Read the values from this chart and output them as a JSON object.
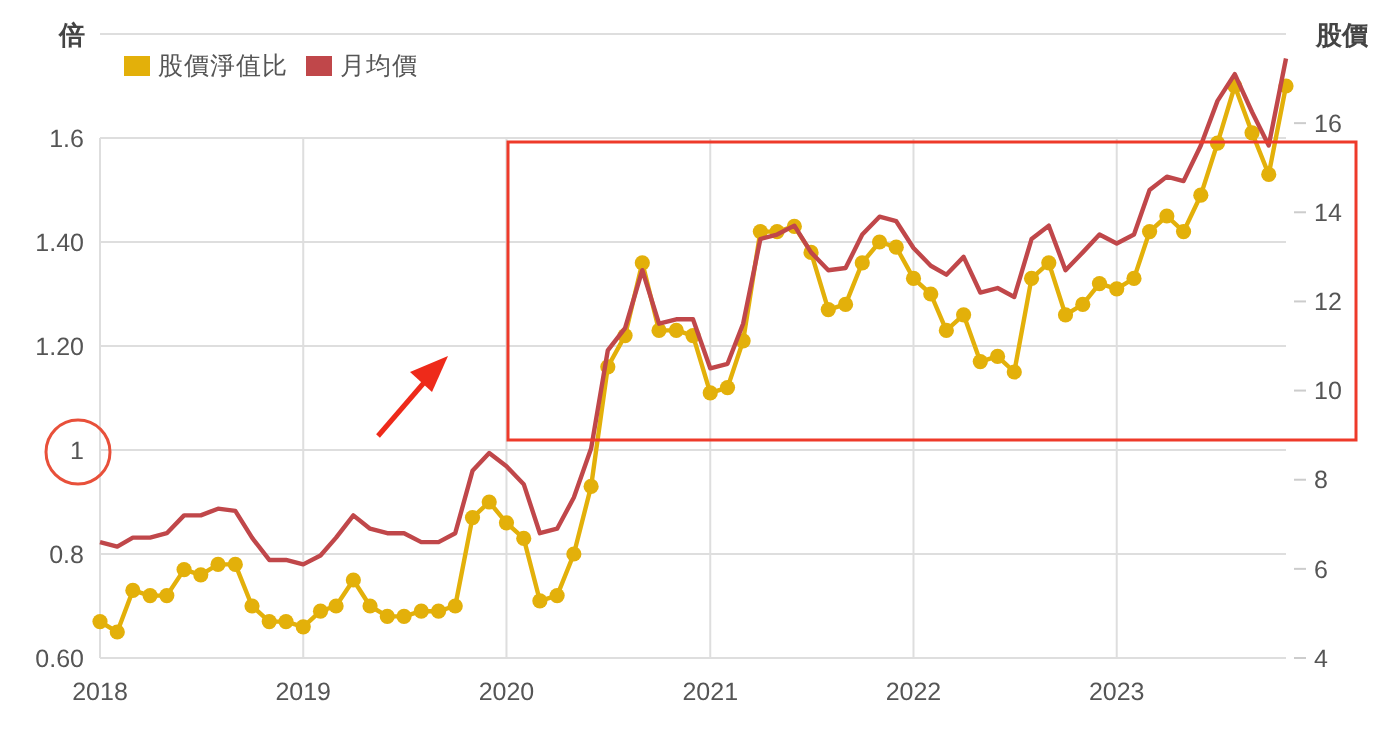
{
  "chart_data": {
    "type": "line",
    "ylabel": "倍",
    "y2label": "股價",
    "x": [
      "2018-01",
      "2018-02",
      "2018-03",
      "2018-04",
      "2018-05",
      "2018-06",
      "2018-07",
      "2018-08",
      "2018-09",
      "2018-10",
      "2018-11",
      "2018-12",
      "2019-01",
      "2019-02",
      "2019-03",
      "2019-04",
      "2019-05",
      "2019-06",
      "2019-07",
      "2019-08",
      "2019-09",
      "2019-10",
      "2019-11",
      "2019-12",
      "2020-01",
      "2020-02",
      "2020-03",
      "2020-04",
      "2020-05",
      "2020-06",
      "2020-07",
      "2020-08",
      "2020-09",
      "2020-10",
      "2020-11",
      "2020-12",
      "2021-01",
      "2021-02",
      "2021-03",
      "2021-04",
      "2021-05",
      "2021-06",
      "2021-07",
      "2021-08",
      "2021-09",
      "2021-10",
      "2021-11",
      "2021-12",
      "2022-01",
      "2022-02",
      "2022-03",
      "2022-04",
      "2022-05",
      "2022-06",
      "2022-07",
      "2022-08",
      "2022-09",
      "2022-10",
      "2022-11",
      "2022-12",
      "2023-01",
      "2023-02",
      "2023-03",
      "2023-04",
      "2023-05",
      "2023-06",
      "2023-07",
      "2023-08",
      "2023-09",
      "2023-10",
      "2023-11"
    ],
    "series": [
      {
        "name": "股價淨值比",
        "color": "#e3b00a",
        "marker": "circle",
        "values": [
          0.67,
          0.65,
          0.73,
          0.72,
          0.72,
          0.77,
          0.76,
          0.78,
          0.78,
          0.7,
          0.67,
          0.67,
          0.66,
          0.69,
          0.7,
          0.75,
          0.7,
          0.68,
          0.68,
          0.69,
          0.69,
          0.7,
          0.87,
          0.9,
          0.86,
          0.83,
          0.71,
          0.72,
          0.8,
          0.93,
          1.16,
          1.22,
          1.36,
          1.23,
          1.23,
          1.22,
          1.11,
          1.12,
          1.21,
          1.42,
          1.42,
          1.43,
          1.38,
          1.27,
          1.28,
          1.36,
          1.4,
          1.39,
          1.33,
          1.3,
          1.23,
          1.26,
          1.17,
          1.18,
          1.15,
          1.33,
          1.36,
          1.26,
          1.28,
          1.32,
          1.31,
          1.33,
          1.42,
          1.45,
          1.42,
          1.49,
          1.59,
          1.7,
          1.61,
          1.53,
          1.7
        ]
      },
      {
        "name": "月均價",
        "color": "#c0474a",
        "marker": "none",
        "axis": "y2",
        "values": [
          6.6,
          6.5,
          6.7,
          6.7,
          6.8,
          7.2,
          7.2,
          7.35,
          7.3,
          6.7,
          6.2,
          6.2,
          6.1,
          6.3,
          6.7,
          7.2,
          6.9,
          6.8,
          6.8,
          6.6,
          6.6,
          6.8,
          8.2,
          8.6,
          8.3,
          7.9,
          6.8,
          6.9,
          7.6,
          8.7,
          10.9,
          11.4,
          12.7,
          11.5,
          11.6,
          11.6,
          10.5,
          10.6,
          11.5,
          13.4,
          13.5,
          13.7,
          13.1,
          12.7,
          12.75,
          13.5,
          13.9,
          13.8,
          13.2,
          12.8,
          12.6,
          13.0,
          12.2,
          12.3,
          12.1,
          13.4,
          13.7,
          12.7,
          13.1,
          13.5,
          13.3,
          13.5,
          14.5,
          14.8,
          14.7,
          15.5,
          16.5,
          17.1,
          16.25,
          15.5,
          17.45
        ]
      }
    ],
    "xlim": [
      "2018-01",
      "2023-11"
    ],
    "xticks": [
      "2018",
      "2019",
      "2020",
      "2021",
      "2022",
      "2023"
    ],
    "ylim": [
      0.6,
      1.8
    ],
    "yticks": [
      {
        "value": 0.6,
        "label": "0.60"
      },
      {
        "value": 0.8,
        "label": "0.8"
      },
      {
        "value": 1,
        "label": "1"
      },
      {
        "value": 1.2,
        "label": "1.20"
      },
      {
        "value": 1.4,
        "label": "1.40"
      },
      {
        "value": 1.6,
        "label": "1.6"
      },
      {
        "value": 1.8,
        "label": null
      }
    ],
    "y2lim": [
      4,
      18
    ],
    "y2ticks": [
      4,
      6,
      8,
      10,
      12,
      14,
      16
    ],
    "grid": true,
    "legend": "top left"
  }
}
